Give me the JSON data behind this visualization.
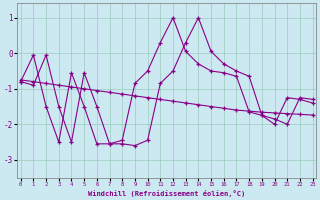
{
  "xlabel": "Windchill (Refroidissement éolien,°C)",
  "background_color": "#cce8f0",
  "line_color": "#880088",
  "grid_color": "#99ccbb",
  "x_values": [
    0,
    1,
    2,
    3,
    4,
    5,
    6,
    7,
    8,
    9,
    10,
    11,
    12,
    13,
    14,
    15,
    16,
    17,
    18,
    19,
    20,
    21,
    22,
    23
  ],
  "series1": [
    -0.8,
    -0.9,
    -0.05,
    -1.5,
    -2.5,
    -0.55,
    -1.5,
    -2.55,
    -2.55,
    -2.6,
    -2.45,
    -0.85,
    -0.5,
    0.3,
    1.0,
    0.05,
    -0.3,
    -0.5,
    -0.65,
    -1.75,
    -1.85,
    -2.0,
    -1.25,
    -1.3
  ],
  "series2": [
    -0.8,
    -0.05,
    -1.5,
    -2.5,
    -0.55,
    -1.5,
    -2.55,
    -2.55,
    -2.45,
    -0.85,
    -0.5,
    0.3,
    1.0,
    0.05,
    -0.3,
    -0.5,
    -0.55,
    -0.65,
    -1.65,
    -1.75,
    -2.0,
    -1.25,
    -1.3,
    -1.4
  ],
  "series3": [
    -0.75,
    -0.8,
    -0.85,
    -0.9,
    -0.95,
    -1.0,
    -1.05,
    -1.1,
    -1.15,
    -1.2,
    -1.25,
    -1.3,
    -1.35,
    -1.4,
    -1.45,
    -1.5,
    -1.55,
    -1.6,
    -1.63,
    -1.66,
    -1.68,
    -1.7,
    -1.72,
    -1.74
  ],
  "ylim": [
    -3.5,
    1.4
  ],
  "yticks": [
    -3,
    -2,
    -1,
    0,
    1
  ],
  "xlim": [
    -0.3,
    23.3
  ]
}
